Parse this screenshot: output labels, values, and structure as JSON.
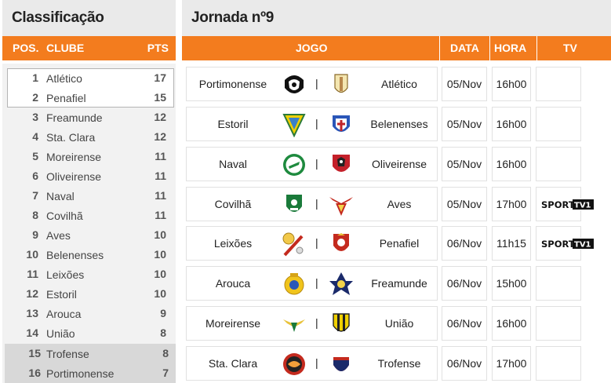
{
  "standings": {
    "title": "Classificação",
    "headers": {
      "pos": "POS.",
      "club": "CLUBE",
      "pts": "PTS"
    },
    "rows": [
      {
        "pos": "1",
        "club": "Atlético",
        "pts": "17"
      },
      {
        "pos": "2",
        "club": "Penafiel",
        "pts": "15"
      },
      {
        "pos": "3",
        "club": "Freamunde",
        "pts": "12"
      },
      {
        "pos": "4",
        "club": "Sta. Clara",
        "pts": "12"
      },
      {
        "pos": "5",
        "club": "Moreirense",
        "pts": "11"
      },
      {
        "pos": "6",
        "club": "Oliveirense",
        "pts": "11"
      },
      {
        "pos": "7",
        "club": "Naval",
        "pts": "11"
      },
      {
        "pos": "8",
        "club": "Covilhã",
        "pts": "11"
      },
      {
        "pos": "9",
        "club": "Aves",
        "pts": "10"
      },
      {
        "pos": "10",
        "club": "Belenenses",
        "pts": "10"
      },
      {
        "pos": "11",
        "club": "Leixões",
        "pts": "10"
      },
      {
        "pos": "12",
        "club": "Estoril",
        "pts": "10"
      },
      {
        "pos": "13",
        "club": "Arouca",
        "pts": "9"
      },
      {
        "pos": "14",
        "club": "União",
        "pts": "8"
      },
      {
        "pos": "15",
        "club": "Trofense",
        "pts": "8"
      },
      {
        "pos": "16",
        "club": "Portimonense",
        "pts": "7"
      }
    ]
  },
  "fixtures": {
    "title": "Jornada nº9",
    "headers": {
      "game": "JOGO",
      "date": "DATA",
      "time": "HORA",
      "tv": "TV"
    },
    "separator": "|",
    "matches": [
      {
        "home": "Portimonense",
        "away": "Atlético",
        "date": "05/Nov",
        "time": "16h00",
        "tv": ""
      },
      {
        "home": "Estoril",
        "away": "Belenenses",
        "date": "05/Nov",
        "time": "16h00",
        "tv": ""
      },
      {
        "home": "Naval",
        "away": "Oliveirense",
        "date": "05/Nov",
        "time": "16h00",
        "tv": ""
      },
      {
        "home": "Covilhã",
        "away": "Aves",
        "date": "05/Nov",
        "time": "17h00",
        "tv": "SPORT TV 1"
      },
      {
        "home": "Leixões",
        "away": "Penafiel",
        "date": "06/Nov",
        "time": "11h15",
        "tv": "SPORT TV 1"
      },
      {
        "home": "Arouca",
        "away": "Freamunde",
        "date": "06/Nov",
        "time": "15h00",
        "tv": ""
      },
      {
        "home": "Moreirense",
        "away": "União",
        "date": "06/Nov",
        "time": "16h00",
        "tv": ""
      },
      {
        "home": "Sta. Clara",
        "away": "Trofense",
        "date": "06/Nov",
        "time": "17h00",
        "tv": ""
      }
    ]
  },
  "colors": {
    "accent": "#f37c1e",
    "title_bg": "#eaeaea",
    "relegation": "#d8d8d8"
  }
}
